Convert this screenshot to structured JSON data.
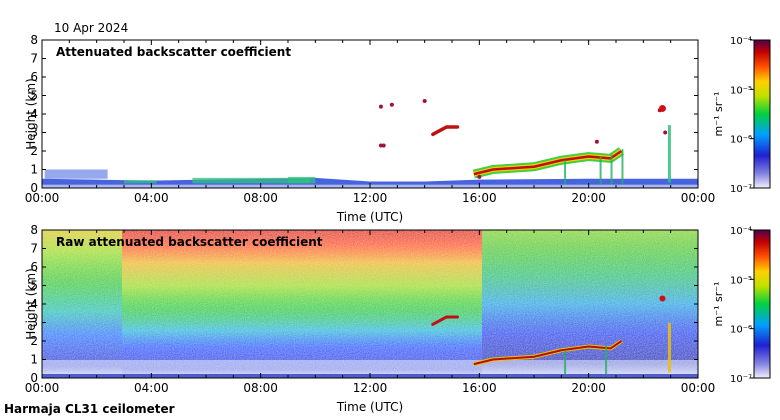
{
  "date": "10 Apr 2024",
  "footer": "Harmaja CL31 ceilometer",
  "colorbar": {
    "unit": "m⁻¹ sr⁻¹",
    "ticks": [
      "10⁻⁴",
      "10⁻⁵",
      "10⁻⁶",
      "10⁻⁷"
    ]
  },
  "colors": {
    "scale": [
      "#e8e8f8",
      "#3030d0",
      "#00b0ff",
      "#00d000",
      "#e0e000",
      "#ff6000",
      "#c00000",
      "#600060"
    ]
  },
  "chart_data": [
    {
      "type": "heatmap",
      "title": "Attenuated backscatter coefficient",
      "xlabel": "Time (UTC)",
      "ylabel": "Height (km)",
      "x_ticks": [
        "00:00",
        "04:00",
        "08:00",
        "12:00",
        "16:00",
        "20:00",
        "00:00"
      ],
      "y_ticks": [
        0,
        1,
        2,
        3,
        4,
        5,
        6,
        7,
        8
      ],
      "ylim": [
        0,
        8
      ],
      "xlim_hours": [
        0,
        24
      ],
      "features": {
        "boundary_layer": [
          [
            0,
            0.5
          ],
          [
            2,
            0.45
          ],
          [
            4,
            0.4
          ],
          [
            6,
            0.45
          ],
          [
            8,
            0.5
          ],
          [
            10,
            0.55
          ],
          [
            12,
            0.35
          ],
          [
            14,
            0.35
          ],
          [
            16,
            0.45
          ],
          [
            20,
            0.5
          ],
          [
            24,
            0.5
          ]
        ],
        "cloud_layer": [
          [
            15.8,
            0.75
          ],
          [
            16.5,
            1.0
          ],
          [
            18,
            1.15
          ],
          [
            19,
            1.5
          ],
          [
            20,
            1.7
          ],
          [
            20.8,
            1.6
          ],
          [
            21.2,
            2.0
          ]
        ],
        "elevated_cloud": [
          [
            14.3,
            2.9
          ],
          [
            14.8,
            3.3
          ],
          [
            15.2,
            3.3
          ]
        ],
        "scattered_echoes": [
          [
            12.4,
            2.3
          ],
          [
            12.5,
            2.3
          ],
          [
            12.4,
            4.4
          ],
          [
            12.8,
            4.5
          ],
          [
            14,
            4.7
          ],
          [
            16,
            0.6
          ],
          [
            20.3,
            2.5
          ],
          [
            22.6,
            4.2
          ],
          [
            22.8,
            3.0
          ]
        ]
      }
    },
    {
      "type": "heatmap",
      "title": "Raw attenuated backscatter coefficient",
      "xlabel": "Time (UTC)",
      "ylabel": "Height (km)",
      "x_ticks": [
        "00:00",
        "04:00",
        "08:00",
        "12:00",
        "16:00",
        "20:00",
        "00:00"
      ],
      "y_ticks": [
        0,
        1,
        2,
        3,
        4,
        5,
        6,
        7,
        8
      ],
      "ylim": [
        0,
        8
      ],
      "xlim_hours": [
        0,
        24
      ],
      "features": {
        "noise_note": "high-noise background increasing with height; highest 06:00-16:00",
        "cloud_layer": [
          [
            15.8,
            0.75
          ],
          [
            16.5,
            1.0
          ],
          [
            18,
            1.15
          ],
          [
            19,
            1.5
          ],
          [
            20,
            1.7
          ],
          [
            20.8,
            1.6
          ],
          [
            21.2,
            2.0
          ]
        ],
        "elevated_cloud": [
          [
            14.3,
            2.9
          ],
          [
            14.8,
            3.3
          ],
          [
            15.2,
            3.3
          ]
        ]
      }
    }
  ]
}
